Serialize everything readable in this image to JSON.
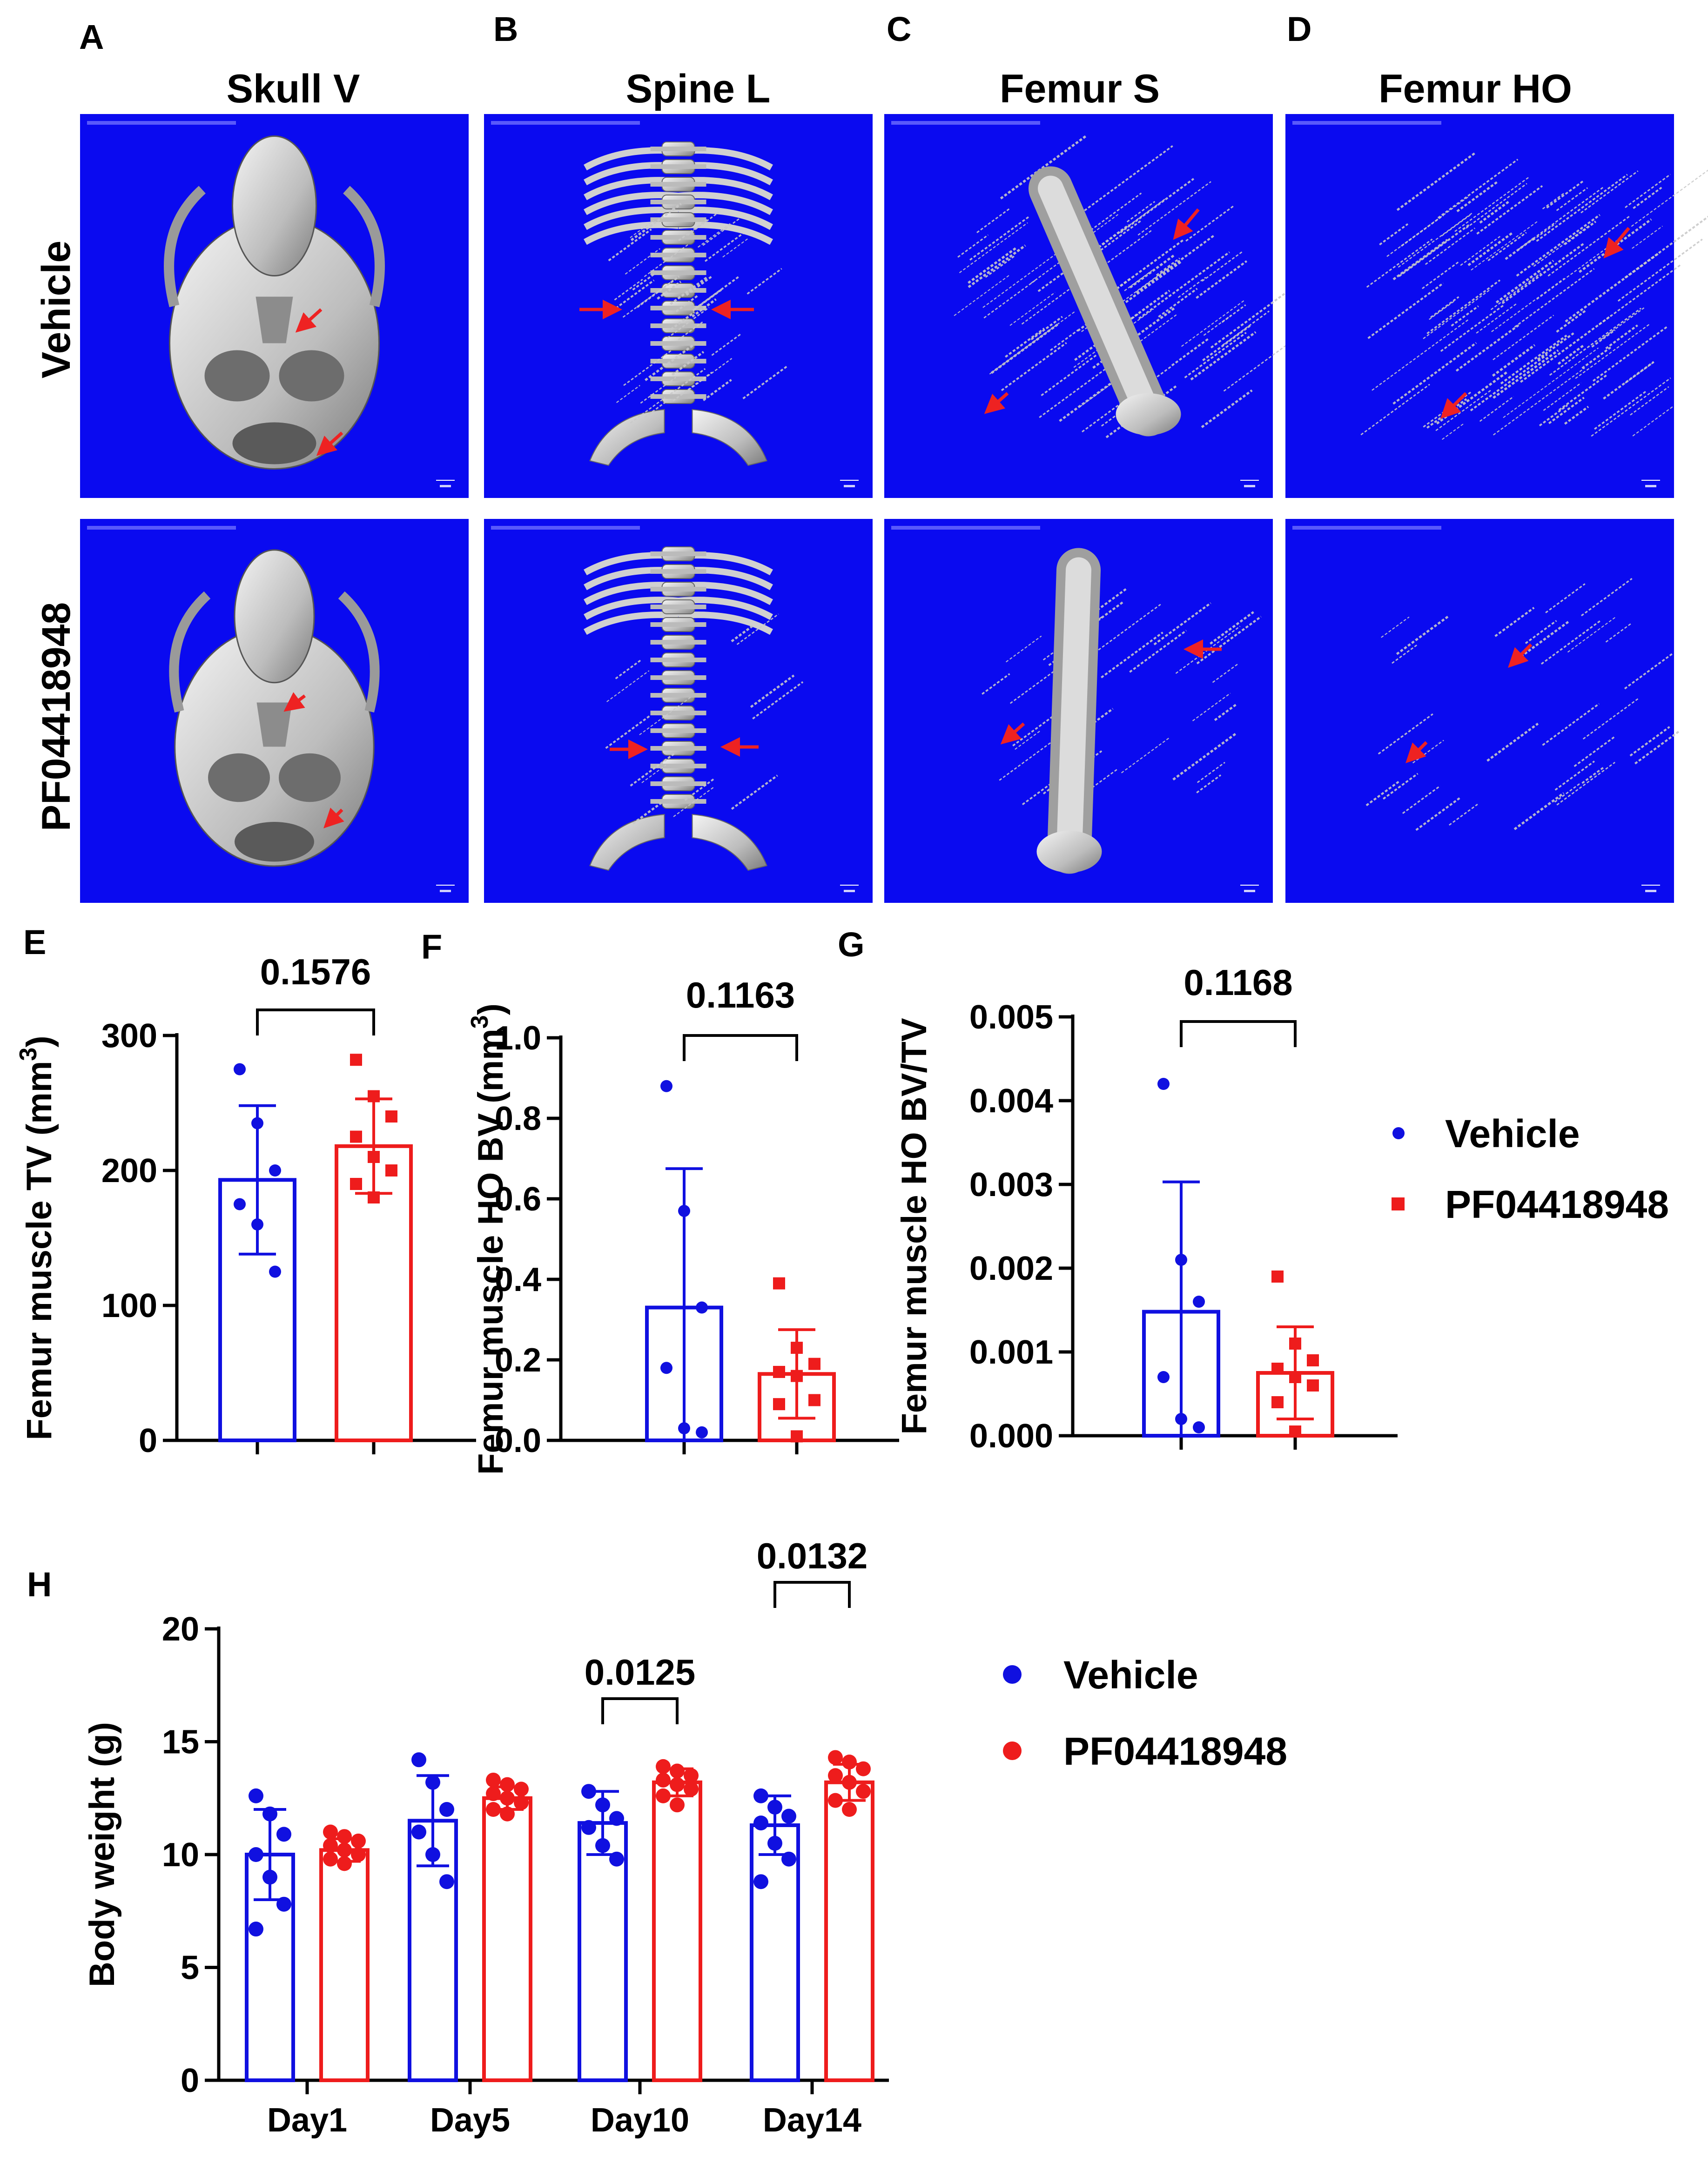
{
  "panel_labels": [
    "A",
    "B",
    "C",
    "D",
    "E",
    "F",
    "G",
    "H"
  ],
  "image_grid": {
    "columns": [
      "Skull V",
      "Spine L",
      "Femur S",
      "Femur HO"
    ],
    "rows": [
      "Vehicle",
      "PF04418948"
    ],
    "background_color": "#0a0af0",
    "arrow_color": "#ee2222"
  },
  "colors": {
    "vehicle": "#1010e0",
    "pf": "#ee1c1c"
  },
  "chart_data": [
    {
      "id": "E",
      "type": "bar",
      "ylabel": "Femur muscle TV (mm3)",
      "ylabel_main": "Femur muscle TV (mm",
      "ylabel_sup": "3",
      "ylabel_tail": ")",
      "ylim": [
        0,
        300
      ],
      "yticks": [
        "0",
        "100",
        "200",
        "300"
      ],
      "ytick_values": [
        0,
        100,
        200,
        300
      ],
      "series": [
        {
          "name": "Vehicle",
          "mean": 193,
          "sd": 55,
          "points": [
            275,
            235,
            200,
            175,
            160,
            125
          ]
        },
        {
          "name": "PF04418948",
          "mean": 218,
          "sd": 35,
          "points": [
            282,
            255,
            240,
            225,
            210,
            200,
            190,
            180
          ]
        }
      ],
      "p_value": "0.1576"
    },
    {
      "id": "F",
      "type": "bar",
      "ylabel": "Femur muscle HO BV (mm3)",
      "ylabel_main": "Femur muscle HO BV (mm",
      "ylabel_sup": "3",
      "ylabel_tail": ")",
      "ylim": [
        0,
        1.0
      ],
      "yticks": [
        "0.0",
        "0.2",
        "0.4",
        "0.6",
        "0.8",
        "1.0"
      ],
      "ytick_values": [
        0,
        0.2,
        0.4,
        0.6,
        0.8,
        1.0
      ],
      "series": [
        {
          "name": "Vehicle",
          "mean": 0.33,
          "sd": 0.345,
          "points": [
            0.88,
            0.57,
            0.33,
            0.18,
            0.03,
            0.02
          ]
        },
        {
          "name": "PF04418948",
          "mean": 0.165,
          "sd": 0.11,
          "points": [
            0.39,
            0.23,
            0.19,
            0.17,
            0.16,
            0.1,
            0.09,
            0.01
          ]
        }
      ],
      "p_value": "0.1163"
    },
    {
      "id": "G",
      "type": "bar",
      "ylabel": "Femur muscle HO BV/TV",
      "ylabel_main": "Femur muscle HO BV/TV",
      "ylabel_sup": "",
      "ylabel_tail": "",
      "ylim": [
        0,
        0.005
      ],
      "yticks": [
        "0.000",
        "0.001",
        "0.002",
        "0.003",
        "0.004",
        "0.005"
      ],
      "ytick_values": [
        0,
        0.001,
        0.002,
        0.003,
        0.004,
        0.005
      ],
      "series": [
        {
          "name": "Vehicle",
          "mean": 0.00148,
          "sd": 0.00155,
          "points": [
            0.0042,
            0.0021,
            0.0016,
            0.0007,
            0.0002,
            0.0001
          ]
        },
        {
          "name": "PF04418948",
          "mean": 0.00075,
          "sd": 0.00055,
          "points": [
            0.0019,
            0.0011,
            0.0009,
            0.0008,
            0.0007,
            0.0006,
            0.0004,
            5e-05
          ]
        }
      ],
      "p_value": "0.1168"
    },
    {
      "id": "H",
      "type": "bar",
      "ylabel": "Body weight (g)",
      "ylim": [
        0,
        20
      ],
      "yticks": [
        "0",
        "5",
        "10",
        "15",
        "20"
      ],
      "ytick_values": [
        0,
        5,
        10,
        15,
        20
      ],
      "categories": [
        "Day1",
        "Day5",
        "Day10",
        "Day14"
      ],
      "series": [
        {
          "name": "Vehicle",
          "means": [
            10.0,
            11.5,
            11.4,
            11.3
          ],
          "sds": [
            2.0,
            2.0,
            1.4,
            1.3
          ],
          "points": [
            [
              12.6,
              11.8,
              10.9,
              10.0,
              9.0,
              7.8,
              6.7
            ],
            [
              14.2,
              13.2,
              12.0,
              11.0,
              10.0,
              8.8
            ],
            [
              12.8,
              12.2,
              11.6,
              11.2,
              10.4,
              9.8
            ],
            [
              12.6,
              12.1,
              11.7,
              11.4,
              10.5,
              9.8,
              8.8
            ]
          ]
        },
        {
          "name": "PF04418948",
          "means": [
            10.2,
            12.5,
            13.2,
            13.2
          ],
          "sds": [
            0.5,
            0.5,
            0.6,
            0.8
          ],
          "points": [
            [
              11.0,
              10.8,
              10.6,
              10.4,
              10.2,
              10.0,
              9.8,
              9.6
            ],
            [
              13.3,
              13.1,
              12.9,
              12.7,
              12.5,
              12.3,
              12.0,
              11.8
            ],
            [
              13.9,
              13.7,
              13.5,
              13.3,
              13.1,
              12.9,
              12.6,
              12.2
            ],
            [
              14.3,
              14.1,
              13.8,
              13.5,
              13.2,
              12.8,
              12.4,
              12.0
            ]
          ]
        }
      ],
      "p_values": [
        {
          "category_index": 2,
          "label": "0.0125"
        },
        {
          "category_index": 3,
          "label": "0.0132"
        }
      ]
    }
  ],
  "legends": [
    {
      "id": "legend-efg",
      "marker": "mixed",
      "items": [
        "Vehicle",
        "PF04418948"
      ]
    },
    {
      "id": "legend-h",
      "marker": "circle",
      "items": [
        "Vehicle",
        "PF04418948"
      ]
    }
  ]
}
